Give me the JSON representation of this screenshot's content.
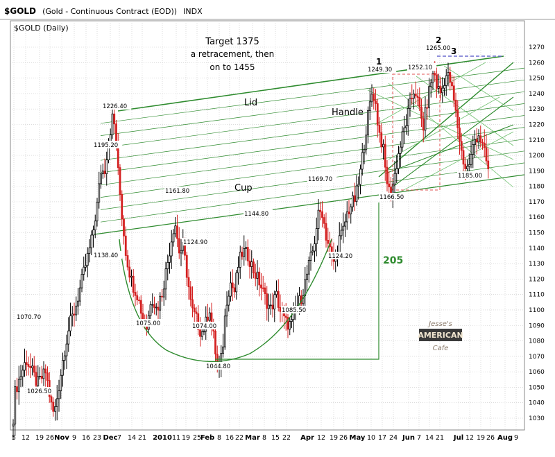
{
  "header": {
    "symbol": "$GOLD",
    "description": "(Gold - Continuous Contract (EOD))",
    "exchange": "INDX"
  },
  "chart_title": "$GOLD (Daily)",
  "chart_data": {
    "type": "candlestick",
    "ylim": [
      1020,
      1275
    ],
    "y_ticks": [
      1030,
      1040,
      1050,
      1060,
      1070,
      1080,
      1090,
      1100,
      1110,
      1120,
      1130,
      1140,
      1150,
      1160,
      1170,
      1180,
      1190,
      1200,
      1210,
      1220,
      1230,
      1240,
      1250,
      1260,
      1270
    ],
    "x_ticks": [
      {
        "label": "5",
        "bold": false
      },
      {
        "label": "12",
        "bold": false
      },
      {
        "label": "19",
        "bold": false
      },
      {
        "label": "26",
        "bold": false
      },
      {
        "label": "Nov",
        "bold": true
      },
      {
        "label": "9",
        "bold": false
      },
      {
        "label": "16",
        "bold": false
      },
      {
        "label": "23",
        "bold": false
      },
      {
        "label": "Dec",
        "bold": true
      },
      {
        "label": "7",
        "bold": false
      },
      {
        "label": "14",
        "bold": false
      },
      {
        "label": "21",
        "bold": false
      },
      {
        "label": "2010",
        "bold": true
      },
      {
        "label": "11",
        "bold": false
      },
      {
        "label": "19",
        "bold": false
      },
      {
        "label": "25",
        "bold": false
      },
      {
        "label": "Feb",
        "bold": true
      },
      {
        "label": "8",
        "bold": false
      },
      {
        "label": "16",
        "bold": false
      },
      {
        "label": "22",
        "bold": false
      },
      {
        "label": "Mar",
        "bold": true
      },
      {
        "label": "8",
        "bold": false
      },
      {
        "label": "15",
        "bold": false
      },
      {
        "label": "22",
        "bold": false
      },
      {
        "label": "Apr",
        "bold": true
      },
      {
        "label": "12",
        "bold": false
      },
      {
        "label": "19",
        "bold": false
      },
      {
        "label": "26",
        "bold": false
      },
      {
        "label": "May",
        "bold": true
      },
      {
        "label": "10",
        "bold": false
      },
      {
        "label": "17",
        "bold": false
      },
      {
        "label": "24",
        "bold": false
      },
      {
        "label": "Jun",
        "bold": true
      },
      {
        "label": "7",
        "bold": false
      },
      {
        "label": "14",
        "bold": false
      },
      {
        "label": "21",
        "bold": false
      },
      {
        "label": "Jul",
        "bold": true
      },
      {
        "label": "12",
        "bold": false
      },
      {
        "label": "19",
        "bold": false
      },
      {
        "label": "26",
        "bold": false
      },
      {
        "label": "Aug",
        "bold": true
      },
      {
        "label": "9",
        "bold": false
      }
    ],
    "price_labels": [
      "1070.70",
      "1026.50",
      "1195.20",
      "1226.40",
      "1138.40",
      "1075.00",
      "1161.80",
      "1124.90",
      "1074.00",
      "1044.80",
      "1144.80",
      "1085.50",
      "1124.20",
      "1169.70",
      "1249.30",
      "1166.50",
      "1252.10",
      "1265.00",
      "1185.00"
    ],
    "annotations": {
      "target": [
        "Target 1375",
        "a retracement, then",
        "on to 1455"
      ],
      "lid": "Lid",
      "cup": "Cup",
      "handle": "Handle",
      "measure": "205",
      "wave_labels": [
        "1",
        "2",
        "3"
      ]
    },
    "grid": true,
    "legend": "none"
  },
  "logo": {
    "top": "Jesse's",
    "main": "AMERICAN",
    "bottom": "Cafe"
  },
  "colors": {
    "up": "#000000",
    "down": "#d42020",
    "trend": "#2e8b2e",
    "trend_light": "#6fbf6f",
    "box": "#e05050",
    "top_line": "#6a6acd",
    "grid": "#c8c8c8"
  }
}
